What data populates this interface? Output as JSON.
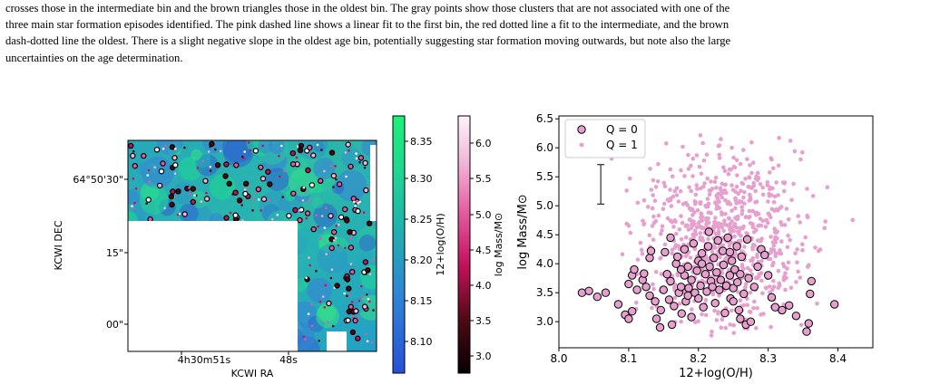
{
  "caption": {
    "lines": [
      "crosses those in the intermediate bin and the brown triangles those in the oldest bin. The gray points show those clusters that are not associated with one of the",
      "three main star formation episodes identified. The pink dashed line shows a linear fit to the first bin, the red dotted line a fit to the intermediate, and the brown",
      "dash-dotted line the oldest. There is a slight negative slope in the oldest age bin, potentially suggesting star formation moving outwards, but note also the large",
      "uncertainties on the age determination."
    ]
  },
  "left_panel": {
    "x_label": "KCWI RA",
    "y_label": "KCWI DEC",
    "x_ticks": [
      "4h30m51s",
      "48s"
    ],
    "y_ticks": [
      "64°50'30\"",
      "15\"",
      "00\""
    ],
    "colorbar_metallicity": {
      "label": "12+log(O/H)",
      "ticks": [
        "8.35",
        "8.30",
        "8.25",
        "8.20",
        "8.15",
        "8.10"
      ]
    },
    "colorbar_mass": {
      "label": "log Mass/M⊙",
      "ticks": [
        "6.0",
        "5.5",
        "5.0",
        "4.5",
        "4.0",
        "3.5",
        "3.0"
      ]
    }
  },
  "chart_data": {
    "type": "scatter",
    "xlabel": "12+log(O/H)",
    "ylabel": "log Mass/M⊙",
    "xlim": [
      8.0,
      8.45
    ],
    "ylim": [
      2.55,
      6.55
    ],
    "x_ticks": [
      "8.0",
      "8.1",
      "8.2",
      "8.3",
      "8.4"
    ],
    "y_ticks": [
      "3.0",
      "3.5",
      "4.0",
      "4.5",
      "5.0",
      "5.5",
      "6.0",
      "6.5"
    ],
    "legend_position": "top-left",
    "error_bar": {
      "x": 8.06,
      "y_low": 5.03,
      "y_high": 5.71
    },
    "series": [
      {
        "name": "Q = 0",
        "color": "#e6a0ce",
        "edge": "#000000",
        "points": [
          [
            8.033,
            3.5
          ],
          [
            8.043,
            3.53
          ],
          [
            8.055,
            3.43
          ],
          [
            8.067,
            3.5
          ],
          [
            8.085,
            3.3
          ],
          [
            8.095,
            3.12
          ],
          [
            8.1,
            3.05
          ],
          [
            8.105,
            3.18
          ],
          [
            8.1,
            3.65
          ],
          [
            8.105,
            3.8
          ],
          [
            8.108,
            3.9
          ],
          [
            8.112,
            3.55
          ],
          [
            8.12,
            3.72
          ],
          [
            8.122,
            3.83
          ],
          [
            8.125,
            3.6
          ],
          [
            8.13,
            3.45
          ],
          [
            8.13,
            4.1
          ],
          [
            8.132,
            4.22
          ],
          [
            8.138,
            3.35
          ],
          [
            8.14,
            3.05
          ],
          [
            8.145,
            2.9
          ],
          [
            8.146,
            3.2
          ],
          [
            8.15,
            3.55
          ],
          [
            8.152,
            4.2
          ],
          [
            8.155,
            3.82
          ],
          [
            8.158,
            3.38
          ],
          [
            8.16,
            3.7
          ],
          [
            8.162,
            2.95
          ],
          [
            8.165,
            3.27
          ],
          [
            8.168,
            4.0
          ],
          [
            8.17,
            4.12
          ],
          [
            8.172,
            3.5
          ],
          [
            8.175,
            3.6
          ],
          [
            8.176,
            3.14
          ],
          [
            8.18,
            3.8
          ],
          [
            8.18,
            4.25
          ],
          [
            8.182,
            3.35
          ],
          [
            8.185,
            3.95
          ],
          [
            8.186,
            3.58
          ],
          [
            8.19,
            3.72
          ],
          [
            8.19,
            3.08
          ],
          [
            8.193,
            4.35
          ],
          [
            8.195,
            3.5
          ],
          [
            8.198,
            3.88
          ],
          [
            8.2,
            4.05
          ],
          [
            8.2,
            3.4
          ],
          [
            8.203,
            3.62
          ],
          [
            8.205,
            4.18
          ],
          [
            8.207,
            3.25
          ],
          [
            8.21,
            3.82
          ],
          [
            8.212,
            3.52
          ],
          [
            8.214,
            4.3
          ],
          [
            8.216,
            3.95
          ],
          [
            8.218,
            3.7
          ],
          [
            8.22,
            3.6
          ],
          [
            8.222,
            4.1
          ],
          [
            8.224,
            3.32
          ],
          [
            8.226,
            3.85
          ],
          [
            8.228,
            4.4
          ],
          [
            8.23,
            3.55
          ],
          [
            8.232,
            3.72
          ],
          [
            8.235,
            4.22
          ],
          [
            8.236,
            3.98
          ],
          [
            8.238,
            3.15
          ],
          [
            8.24,
            3.62
          ],
          [
            8.242,
            4.45
          ],
          [
            8.245,
            3.8
          ],
          [
            8.246,
            3.4
          ],
          [
            8.248,
            4.05
          ],
          [
            8.25,
            3.58
          ],
          [
            8.252,
            3.9
          ],
          [
            8.255,
            4.3
          ],
          [
            8.256,
            3.68
          ],
          [
            8.258,
            3.2
          ],
          [
            8.26,
            3.82
          ],
          [
            8.262,
            4.12
          ],
          [
            8.265,
            3.48
          ],
          [
            8.268,
            2.95
          ],
          [
            8.27,
            4.42
          ],
          [
            8.272,
            3.75
          ],
          [
            8.275,
            3.0
          ],
          [
            8.28,
            3.6
          ],
          [
            8.285,
            3.95
          ],
          [
            8.29,
            4.25
          ],
          [
            8.295,
            4.15
          ],
          [
            8.3,
            3.8
          ],
          [
            8.305,
            3.42
          ],
          [
            8.31,
            3.25
          ],
          [
            8.32,
            3.2
          ],
          [
            8.33,
            3.28
          ],
          [
            8.34,
            3.1
          ],
          [
            8.355,
            2.83
          ],
          [
            8.358,
            2.97
          ],
          [
            8.36,
            3.48
          ],
          [
            8.362,
            3.7
          ],
          [
            8.395,
            3.3
          ],
          [
            8.16,
            4.45
          ],
          [
            8.215,
            4.55
          ],
          [
            8.205,
            4.0
          ],
          [
            8.185,
            3.45
          ],
          [
            8.175,
            3.9
          ],
          [
            8.25,
            3.35
          ],
          [
            8.26,
            3.05
          ],
          [
            8.245,
            4.2
          ]
        ]
      },
      {
        "name": "Q = 1",
        "color": "#e6a0ce",
        "edge": "none",
        "points": []
      }
    ]
  }
}
